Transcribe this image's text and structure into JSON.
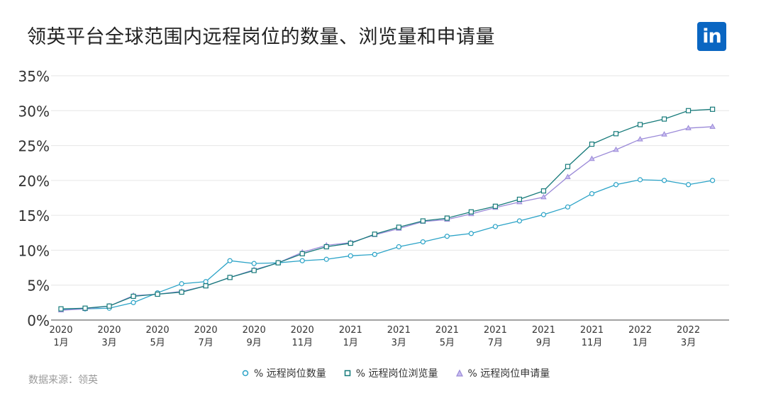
{
  "title": "领英平台全球范围内远程岗位的数量、浏览量和申请量",
  "logo_text": "in",
  "source": "数据来源：领英",
  "colors": {
    "series1": "#2ba3c7",
    "series2": "#167a7a",
    "series3": "#9b8ad8",
    "grid": "#e6e6e6",
    "axis": "#444444"
  },
  "chart_data": {
    "type": "line",
    "title": "领英平台全球范围内远程岗位的数量、浏览量和申请量",
    "xlabel": "",
    "ylabel": "",
    "ylim": [
      0,
      35
    ],
    "yticks": [
      "0%",
      "5%",
      "10%",
      "15%",
      "20%",
      "25%",
      "30%",
      "35%"
    ],
    "grid": true,
    "legend": "bottom",
    "x_tick_labels": [
      {
        "index": 0,
        "year": "2020",
        "month": "1月"
      },
      {
        "index": 2,
        "year": "2020",
        "month": "3月"
      },
      {
        "index": 4,
        "year": "2020",
        "month": "5月"
      },
      {
        "index": 6,
        "year": "2020",
        "month": "7月"
      },
      {
        "index": 8,
        "year": "2020",
        "month": "9月"
      },
      {
        "index": 10,
        "year": "2020",
        "month": "11月"
      },
      {
        "index": 12,
        "year": "2021",
        "month": "1月"
      },
      {
        "index": 14,
        "year": "2021",
        "month": "3月"
      },
      {
        "index": 16,
        "year": "2021",
        "month": "5月"
      },
      {
        "index": 18,
        "year": "2021",
        "month": "7月"
      },
      {
        "index": 20,
        "year": "2021",
        "month": "9月"
      },
      {
        "index": 22,
        "year": "2021",
        "month": "11月"
      },
      {
        "index": 24,
        "year": "2022",
        "month": "1月"
      },
      {
        "index": 26,
        "year": "2022",
        "month": "3月"
      }
    ],
    "series": [
      {
        "name": "% 远程岗位数量",
        "marker": "circle",
        "values": [
          1.5,
          1.6,
          1.7,
          2.5,
          3.9,
          5.2,
          5.5,
          8.5,
          8.1,
          8.2,
          8.5,
          8.7,
          9.2,
          9.4,
          10.5,
          11.2,
          12.0,
          12.4,
          13.4,
          14.2,
          15.1,
          16.2,
          18.1,
          19.4,
          20.1,
          20.0,
          19.4,
          20.0
        ]
      },
      {
        "name": "% 远程岗位浏览量",
        "marker": "square",
        "values": [
          1.6,
          1.7,
          2.0,
          3.4,
          3.7,
          4.0,
          4.9,
          6.1,
          7.1,
          8.2,
          9.5,
          10.5,
          11.0,
          12.3,
          13.3,
          14.2,
          14.6,
          15.5,
          16.3,
          17.3,
          18.5,
          22.0,
          25.2,
          26.7,
          28.0,
          28.8,
          30.0,
          30.2
        ]
      },
      {
        "name": "% 远程岗位申请量",
        "marker": "triangle",
        "values": [
          1.4,
          1.6,
          2.0,
          3.5,
          3.7,
          4.1,
          4.9,
          6.1,
          7.2,
          8.2,
          9.7,
          10.7,
          11.1,
          12.2,
          13.1,
          14.1,
          14.4,
          15.2,
          16.1,
          16.9,
          17.6,
          20.5,
          23.1,
          24.4,
          25.9,
          26.6,
          27.5,
          27.7
        ]
      }
    ]
  }
}
